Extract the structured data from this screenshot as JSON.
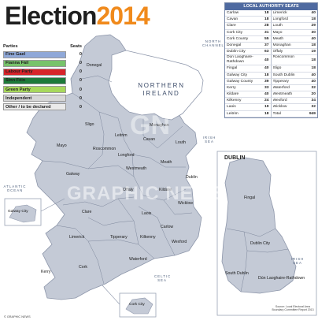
{
  "title": {
    "part1": "Election",
    "part2": "2014"
  },
  "legend": {
    "header_parties": "Parties",
    "header_seats": "Seats",
    "items": [
      {
        "label": "Fine Gael",
        "seats": "0",
        "color": "#8fa8d8"
      },
      {
        "label": "Fianna Fáil",
        "seats": "0",
        "color": "#77c36b"
      },
      {
        "label": "Labour Party",
        "seats": "0",
        "color": "#d8232a"
      },
      {
        "label": "Sinn Féin",
        "seats": "0",
        "color": "#1d7a3a"
      },
      {
        "label": "Green Party",
        "seats": "0",
        "color": "#a8d85c"
      },
      {
        "label": "Independent",
        "seats": "0",
        "color": "#d7d7d7"
      },
      {
        "label": "Other / to be declared",
        "seats": "0",
        "color": "#eaeaea"
      }
    ]
  },
  "seats_table": {
    "header": "LOCAL AUTHORITY SEATS",
    "rows": [
      [
        {
          "n": "Carlow",
          "v": "18"
        },
        {
          "n": "Limerick",
          "v": "40"
        }
      ],
      [
        {
          "n": "Cavan",
          "v": "18"
        },
        {
          "n": "Longford",
          "v": "18"
        }
      ],
      [
        {
          "n": "Clare",
          "v": "28"
        },
        {
          "n": "Louth",
          "v": "29"
        }
      ],
      [
        {
          "n": "Cork City",
          "v": "31"
        },
        {
          "n": "Mayo",
          "v": "30"
        }
      ],
      [
        {
          "n": "Cork County",
          "v": "55"
        },
        {
          "n": "Meath",
          "v": "40"
        }
      ],
      [
        {
          "n": "Donegal",
          "v": "37"
        },
        {
          "n": "Monaghan",
          "v": "18"
        }
      ],
      [
        {
          "n": "Dublin City",
          "v": "63"
        },
        {
          "n": "Offaly",
          "v": "19"
        }
      ],
      [
        {
          "n": "Dún Laoghaire-Rathdown",
          "v": "40"
        },
        {
          "n": "Roscommon",
          "v": "18"
        }
      ],
      [
        {
          "n": "Fingal",
          "v": "40"
        },
        {
          "n": "Sligo",
          "v": "18"
        }
      ],
      [
        {
          "n": "Galway City",
          "v": "18"
        },
        {
          "n": "South Dublin",
          "v": "40"
        }
      ],
      [
        {
          "n": "Galway County",
          "v": "39"
        },
        {
          "n": "Tipperary",
          "v": "40"
        }
      ],
      [
        {
          "n": "Kerry",
          "v": "33"
        },
        {
          "n": "Waterford",
          "v": "32"
        }
      ],
      [
        {
          "n": "Kildare",
          "v": "40"
        },
        {
          "n": "Westmeath",
          "v": "20"
        }
      ],
      [
        {
          "n": "Kilkenny",
          "v": "24"
        },
        {
          "n": "Wexford",
          "v": "34"
        }
      ],
      [
        {
          "n": "Laois",
          "v": "19"
        },
        {
          "n": "Wicklow",
          "v": "32"
        }
      ],
      [
        {
          "n": "Leitrim",
          "v": "18"
        },
        {
          "n": "Total",
          "v": "949"
        }
      ]
    ]
  },
  "map_labels": {
    "northern_ireland": "NORTHERN IRELAND",
    "north_channel": "NORTH CHANNEL",
    "atlantic": "ATLANTIC OCEAN",
    "irish_sea": "IRISH SEA",
    "irish_sea_inset": "IRISH SEA",
    "celtic_sea": "CELTIC SEA",
    "counties": {
      "donegal": "Donegal",
      "sligo": "Sligo",
      "leitrim": "Leitrim",
      "mayo": "Mayo",
      "roscommon": "Roscommon",
      "cavan": "Cavan",
      "monaghan": "Monaghan",
      "louth": "Louth",
      "longford": "Longford",
      "westmeath": "Westmeath",
      "meath": "Meath",
      "galway": "Galway",
      "offaly": "Offaly",
      "kildare": "Kildare",
      "dublin": "Dublin",
      "wicklow": "Wicklow",
      "clare": "Clare",
      "laois": "Laois",
      "carlow": "Carlow",
      "limerick": "Limerick",
      "tipperary": "Tipperary",
      "kilkenny": "Kilkenny",
      "wexford": "Wexford",
      "kerry": "Kerry",
      "cork": "Cork",
      "waterford": "Waterford"
    },
    "galway_city": "Galway City",
    "cork_city": "Cork City",
    "dublin_inset_title": "DUBLIN",
    "dublin_inset": {
      "fingal": "Fingal",
      "dublin_city": "Dublin City",
      "south_dublin": "South Dublin",
      "dun_laoghaire": "Dún Laoghaire-Rathdown"
    }
  },
  "watermark": {
    "line1": "GN",
    "line2": "GRAPHIC NEWS"
  },
  "copyright": "© GRAPHIC NEWS",
  "source": "Source: Local Electoral Area Boundary Committee Report 2013"
}
